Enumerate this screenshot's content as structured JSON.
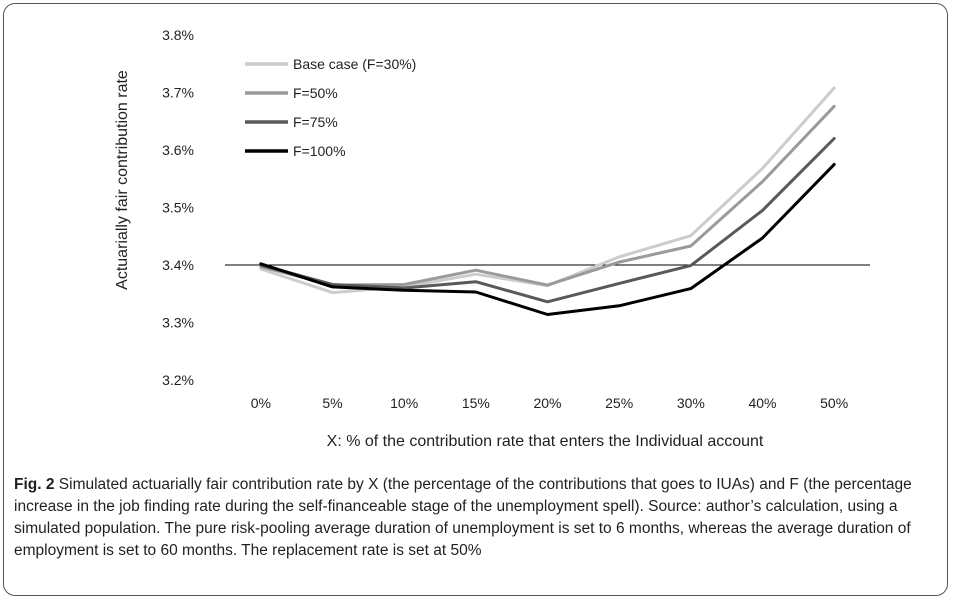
{
  "caption": {
    "label": "Fig. 2",
    "text": "Simulated actuarially fair contribution rate by X (the percentage of the contributions that goes to IUAs) and F (the percentage increase in the job finding rate during the self-financeable stage of the unemployment spell). Source: author’s calculation, using a simulated population. The pure risk-pooling average duration of unemployment is set to 6 months, whereas the average duration of employment is set to 60 months. The replacement rate is set at 50%"
  },
  "chart_data": {
    "type": "line",
    "title": "",
    "xlabel": "X: % of the contribution rate that enters the Individual account",
    "ylabel": "Actuarially fair contribution rate",
    "categories": [
      "0%",
      "5%",
      "10%",
      "15%",
      "20%",
      "25%",
      "30%",
      "40%",
      "50%"
    ],
    "ylim": [
      3.2,
      3.8
    ],
    "yticks": [
      "3.2%",
      "3.3%",
      "3.4%",
      "3.5%",
      "3.6%",
      "3.7%",
      "3.8%"
    ],
    "reference_line": 3.4,
    "grid": false,
    "legend_position": "top-left",
    "series": [
      {
        "name": "Base case (F=30%)",
        "color": "#cccccc",
        "values": [
          3.393,
          3.352,
          3.362,
          3.384,
          3.364,
          3.414,
          3.451,
          3.568,
          3.708
        ]
      },
      {
        "name": "F=50%",
        "color": "#9a9a9a",
        "values": [
          3.397,
          3.365,
          3.366,
          3.391,
          3.365,
          3.405,
          3.433,
          3.545,
          3.676
        ]
      },
      {
        "name": "F=75%",
        "color": "#595959",
        "values": [
          3.4,
          3.366,
          3.36,
          3.371,
          3.336,
          3.368,
          3.399,
          3.495,
          3.62
        ]
      },
      {
        "name": "F=100%",
        "color": "#000000",
        "values": [
          3.402,
          3.362,
          3.356,
          3.353,
          3.314,
          3.329,
          3.359,
          3.447,
          3.575
        ]
      }
    ]
  }
}
